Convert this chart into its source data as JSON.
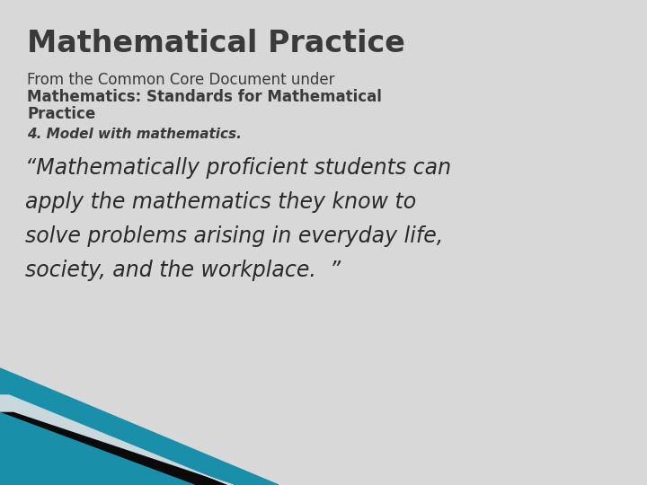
{
  "background_color": "#d8d8d8",
  "title": "Mathematical Practice",
  "title_color": "#3a3a3a",
  "title_fontsize": 24,
  "subtitle_line1": "From the Common Core Document under",
  "subtitle_line2": "Mathematics: Standards for Mathematical",
  "subtitle_line3": "Practice",
  "subtitle_normal_color": "#3a3a3a",
  "subtitle_fontsize": 12,
  "item_label": "4. Model with mathematics.",
  "item_fontsize": 11,
  "item_color": "#3a3a3a",
  "quote_lines": [
    "“Mathematically proficient students can",
    "apply the mathematics they know to",
    "solve problems arising in everyday life,",
    "society, and the workplace.  ”"
  ],
  "quote_fontsize": 17,
  "quote_color": "#2a2a2a",
  "corner_teal": "#1a8faa",
  "corner_black": "#0a0a0a",
  "corner_light": "#c8d8dc"
}
